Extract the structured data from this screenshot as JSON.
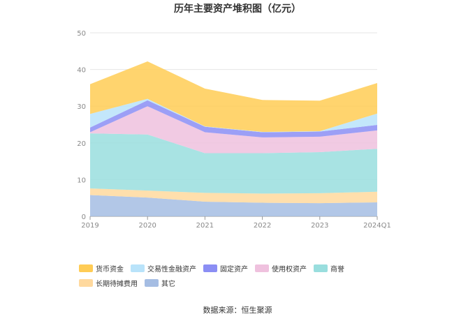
{
  "title": "历年主要资产堆积图（亿元）",
  "source": "数据来源：恒生聚源",
  "colors": {
    "货币资金": "#ffcc55",
    "交易性金融资产": "#b9e3fa",
    "固定资产": "#8b8ef4",
    "使用权资产": "#efc1de",
    "商誉": "#99dede",
    "长期待摊费用": "#ffd99e",
    "其它": "#a5bde3"
  },
  "chart_data": {
    "type": "area",
    "stacked": true,
    "title": "历年主要资产堆积图（亿元）",
    "xlabel": "",
    "ylabel": "",
    "categories": [
      "2019",
      "2020",
      "2021",
      "2022",
      "2023",
      "2024Q1"
    ],
    "ylim": [
      0,
      50
    ],
    "yticks": [
      0,
      10,
      20,
      30,
      40,
      50
    ],
    "grid": true,
    "legend_position": "bottom",
    "series": [
      {
        "name": "其它",
        "values": [
          5.8,
          5.1,
          4.0,
          3.7,
          3.6,
          3.8
        ]
      },
      {
        "name": "长期待摊费用",
        "values": [
          1.8,
          1.9,
          2.4,
          2.5,
          2.7,
          2.9
        ]
      },
      {
        "name": "商誉",
        "values": [
          15.0,
          15.3,
          10.8,
          11.0,
          11.2,
          11.7
        ]
      },
      {
        "name": "使用权资产",
        "values": [
          0.3,
          7.7,
          5.7,
          4.3,
          4.2,
          5.0
        ]
      },
      {
        "name": "固定资产",
        "values": [
          1.3,
          1.6,
          1.5,
          1.4,
          1.4,
          1.5
        ]
      },
      {
        "name": "交易性金融资产",
        "values": [
          3.7,
          0.4,
          0.1,
          0.1,
          0.1,
          3.1
        ]
      },
      {
        "name": "货币资金",
        "values": [
          8.1,
          10.2,
          10.3,
          8.7,
          8.3,
          8.3
        ]
      }
    ]
  },
  "legend_order": [
    "货币资金",
    "交易性金融资产",
    "固定资产",
    "使用权资产",
    "商誉",
    "长期待摊费用",
    "其它"
  ]
}
